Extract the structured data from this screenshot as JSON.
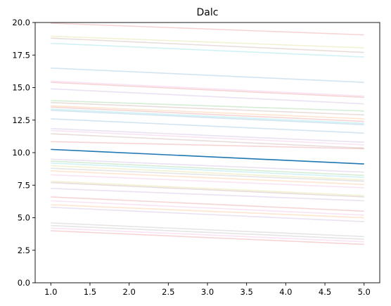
{
  "chart_data": {
    "type": "line",
    "title": "Dalc",
    "xlabel": "",
    "ylabel": "",
    "xlim": [
      0.8,
      5.2
    ],
    "ylim": [
      0,
      20
    ],
    "xticks": [
      "1.0",
      "1.5",
      "2.0",
      "2.5",
      "3.0",
      "3.5",
      "4.0",
      "4.5",
      "5.0"
    ],
    "yticks": [
      "0.0",
      "2.5",
      "5.0",
      "7.5",
      "10.0",
      "12.5",
      "15.0",
      "17.5",
      "20.0"
    ],
    "grid": false,
    "x": [
      1,
      5
    ],
    "highlight_series": {
      "name": "main",
      "color": "#1f77b4",
      "values": [
        10.25,
        9.13
      ]
    },
    "background_series": [
      {
        "color": "#d62728",
        "values": [
          19.95,
          19.05
        ]
      },
      {
        "color": "#bcbd22",
        "values": [
          18.95,
          18.05
        ]
      },
      {
        "color": "#8c564b",
        "values": [
          18.8,
          17.7
        ]
      },
      {
        "color": "#17becf",
        "values": [
          18.4,
          17.35
        ]
      },
      {
        "color": "#1f77b4",
        "values": [
          16.5,
          15.4
        ]
      },
      {
        "color": "#e377c2",
        "values": [
          15.5,
          14.35
        ]
      },
      {
        "color": "#d62728",
        "values": [
          15.4,
          14.25
        ]
      },
      {
        "color": "#9467bd",
        "values": [
          14.9,
          13.75
        ]
      },
      {
        "color": "#2ca02c",
        "values": [
          14.0,
          13.2
        ]
      },
      {
        "color": "#8c564b",
        "values": [
          13.85,
          12.9
        ]
      },
      {
        "color": "#ff7f0e",
        "values": [
          13.6,
          12.6
        ]
      },
      {
        "color": "#d62728",
        "values": [
          13.5,
          12.4
        ]
      },
      {
        "color": "#17becf",
        "values": [
          13.35,
          12.25
        ]
      },
      {
        "color": "#1f77b4",
        "values": [
          13.25,
          12.15
        ]
      },
      {
        "color": "#1f77b4",
        "values": [
          12.6,
          11.5
        ]
      },
      {
        "color": "#9467bd",
        "values": [
          11.85,
          10.8
        ]
      },
      {
        "color": "#e377c2",
        "values": [
          11.7,
          10.6
        ]
      },
      {
        "color": "#8c564b",
        "values": [
          11.45,
          10.35
        ]
      },
      {
        "color": "#d62728",
        "values": [
          10.85,
          10.3
        ]
      },
      {
        "color": "#9467bd",
        "values": [
          9.5,
          8.5
        ]
      },
      {
        "color": "#2ca02c",
        "values": [
          9.35,
          8.25
        ]
      },
      {
        "color": "#17becf",
        "values": [
          9.2,
          8.1
        ]
      },
      {
        "color": "#bcbd22",
        "values": [
          9.0,
          7.9
        ]
      },
      {
        "color": "#7f7f7f",
        "values": [
          8.8,
          7.8
        ]
      },
      {
        "color": "#ff7f0e",
        "values": [
          8.6,
          7.55
        ]
      },
      {
        "color": "#e377c2",
        "values": [
          8.3,
          7.3
        ]
      },
      {
        "color": "#bcbd22",
        "values": [
          7.8,
          6.7
        ]
      },
      {
        "color": "#8c564b",
        "values": [
          7.7,
          6.6
        ]
      },
      {
        "color": "#9467bd",
        "values": [
          7.25,
          6.3
        ]
      },
      {
        "color": "#d62728",
        "values": [
          6.6,
          5.5
        ]
      },
      {
        "color": "#e377c2",
        "values": [
          6.3,
          5.2
        ]
      },
      {
        "color": "#ff7f0e",
        "values": [
          6.0,
          5.0
        ]
      },
      {
        "color": "#9467bd",
        "values": [
          5.8,
          4.7
        ]
      },
      {
        "color": "#7f7f7f",
        "values": [
          4.6,
          3.55
        ]
      },
      {
        "color": "#7f7f7f",
        "values": [
          4.4,
          3.35
        ]
      },
      {
        "color": "#e377c2",
        "values": [
          4.2,
          3.15
        ]
      },
      {
        "color": "#d62728",
        "values": [
          4.0,
          2.95
        ]
      }
    ]
  }
}
